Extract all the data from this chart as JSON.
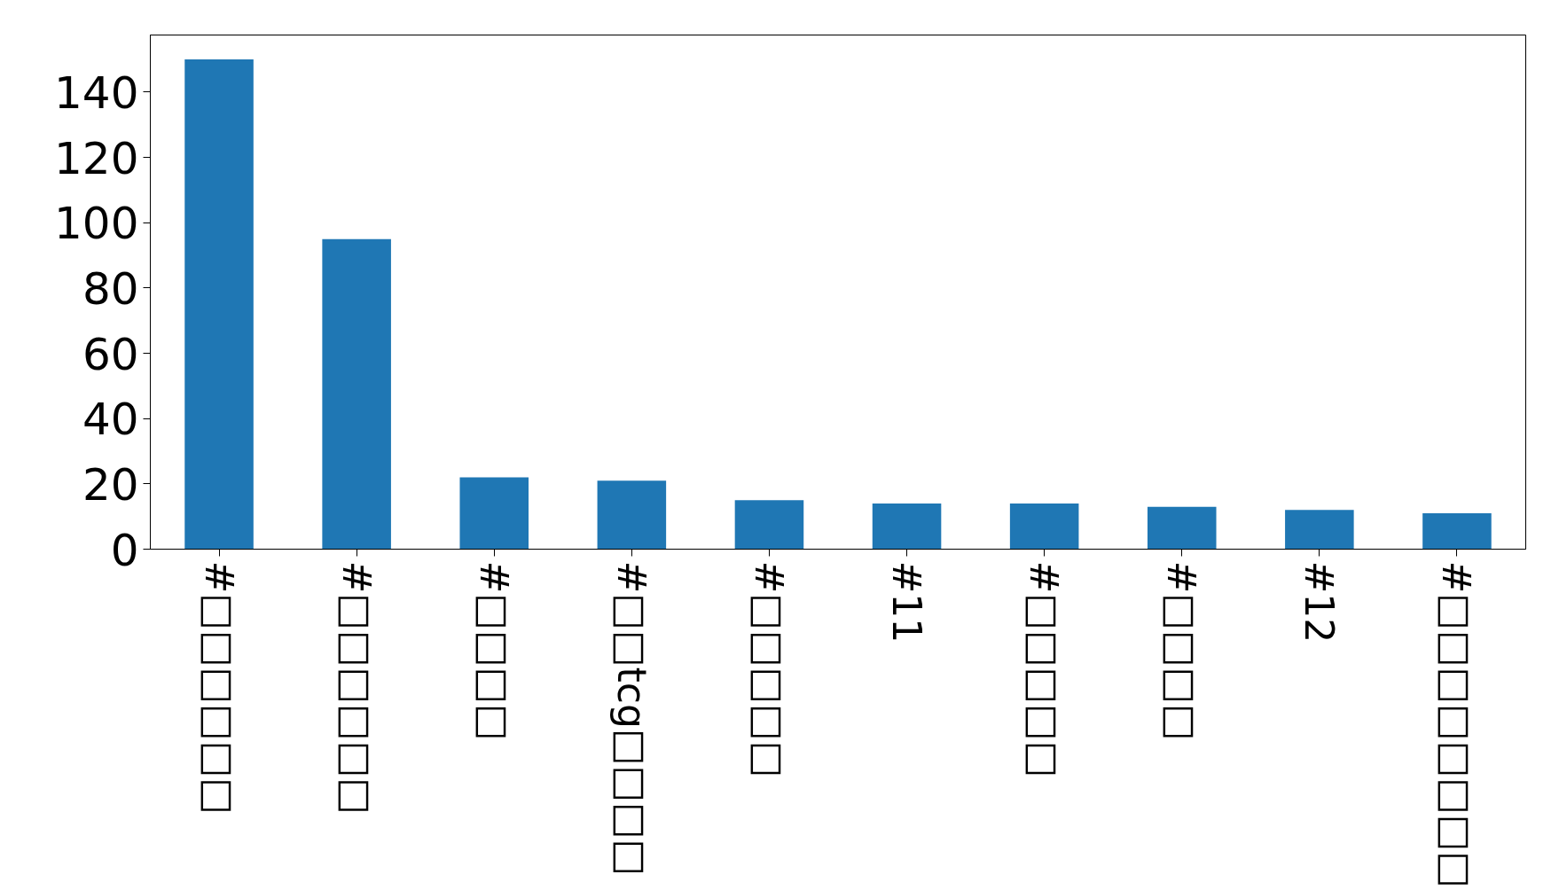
{
  "chart_data": {
    "type": "bar",
    "categories": [
      "#□□□□□□",
      "#□□□□□□",
      "#□□□□",
      "#□□tcg□□□□",
      "#□□□□□",
      "#11",
      "#□□□□□",
      "#□□□□",
      "#12",
      "#□□□□□□□□"
    ],
    "values": [
      150,
      95,
      22,
      21,
      15,
      14,
      14,
      13,
      12,
      11
    ],
    "color": "#1f77b4",
    "ylim": [
      0,
      157.5
    ],
    "yticks": [
      0,
      20,
      40,
      60,
      80,
      100,
      120,
      140
    ],
    "grid": false
  }
}
